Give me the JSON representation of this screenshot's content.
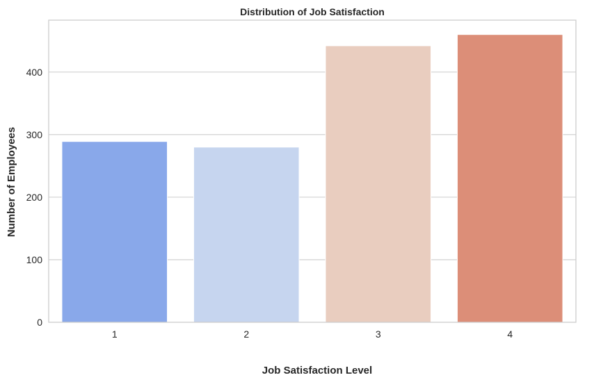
{
  "chart_data": {
    "type": "bar",
    "title": "Distribution of Job Satisfaction",
    "xlabel": "Job Satisfaction Level",
    "ylabel": "Number of Employees",
    "categories": [
      "1",
      "2",
      "3",
      "4"
    ],
    "values": [
      289,
      280,
      442,
      460
    ],
    "colors": [
      "#89a8ea",
      "#c6d5ef",
      "#e9cdbf",
      "#dc8e78"
    ],
    "ylim": [
      0,
      483
    ],
    "yticks": [
      0,
      100,
      200,
      300,
      400
    ],
    "ytick_labels": [
      "0",
      "100",
      "200",
      "300",
      "400"
    ],
    "grid": "horizontal",
    "legend": false
  }
}
